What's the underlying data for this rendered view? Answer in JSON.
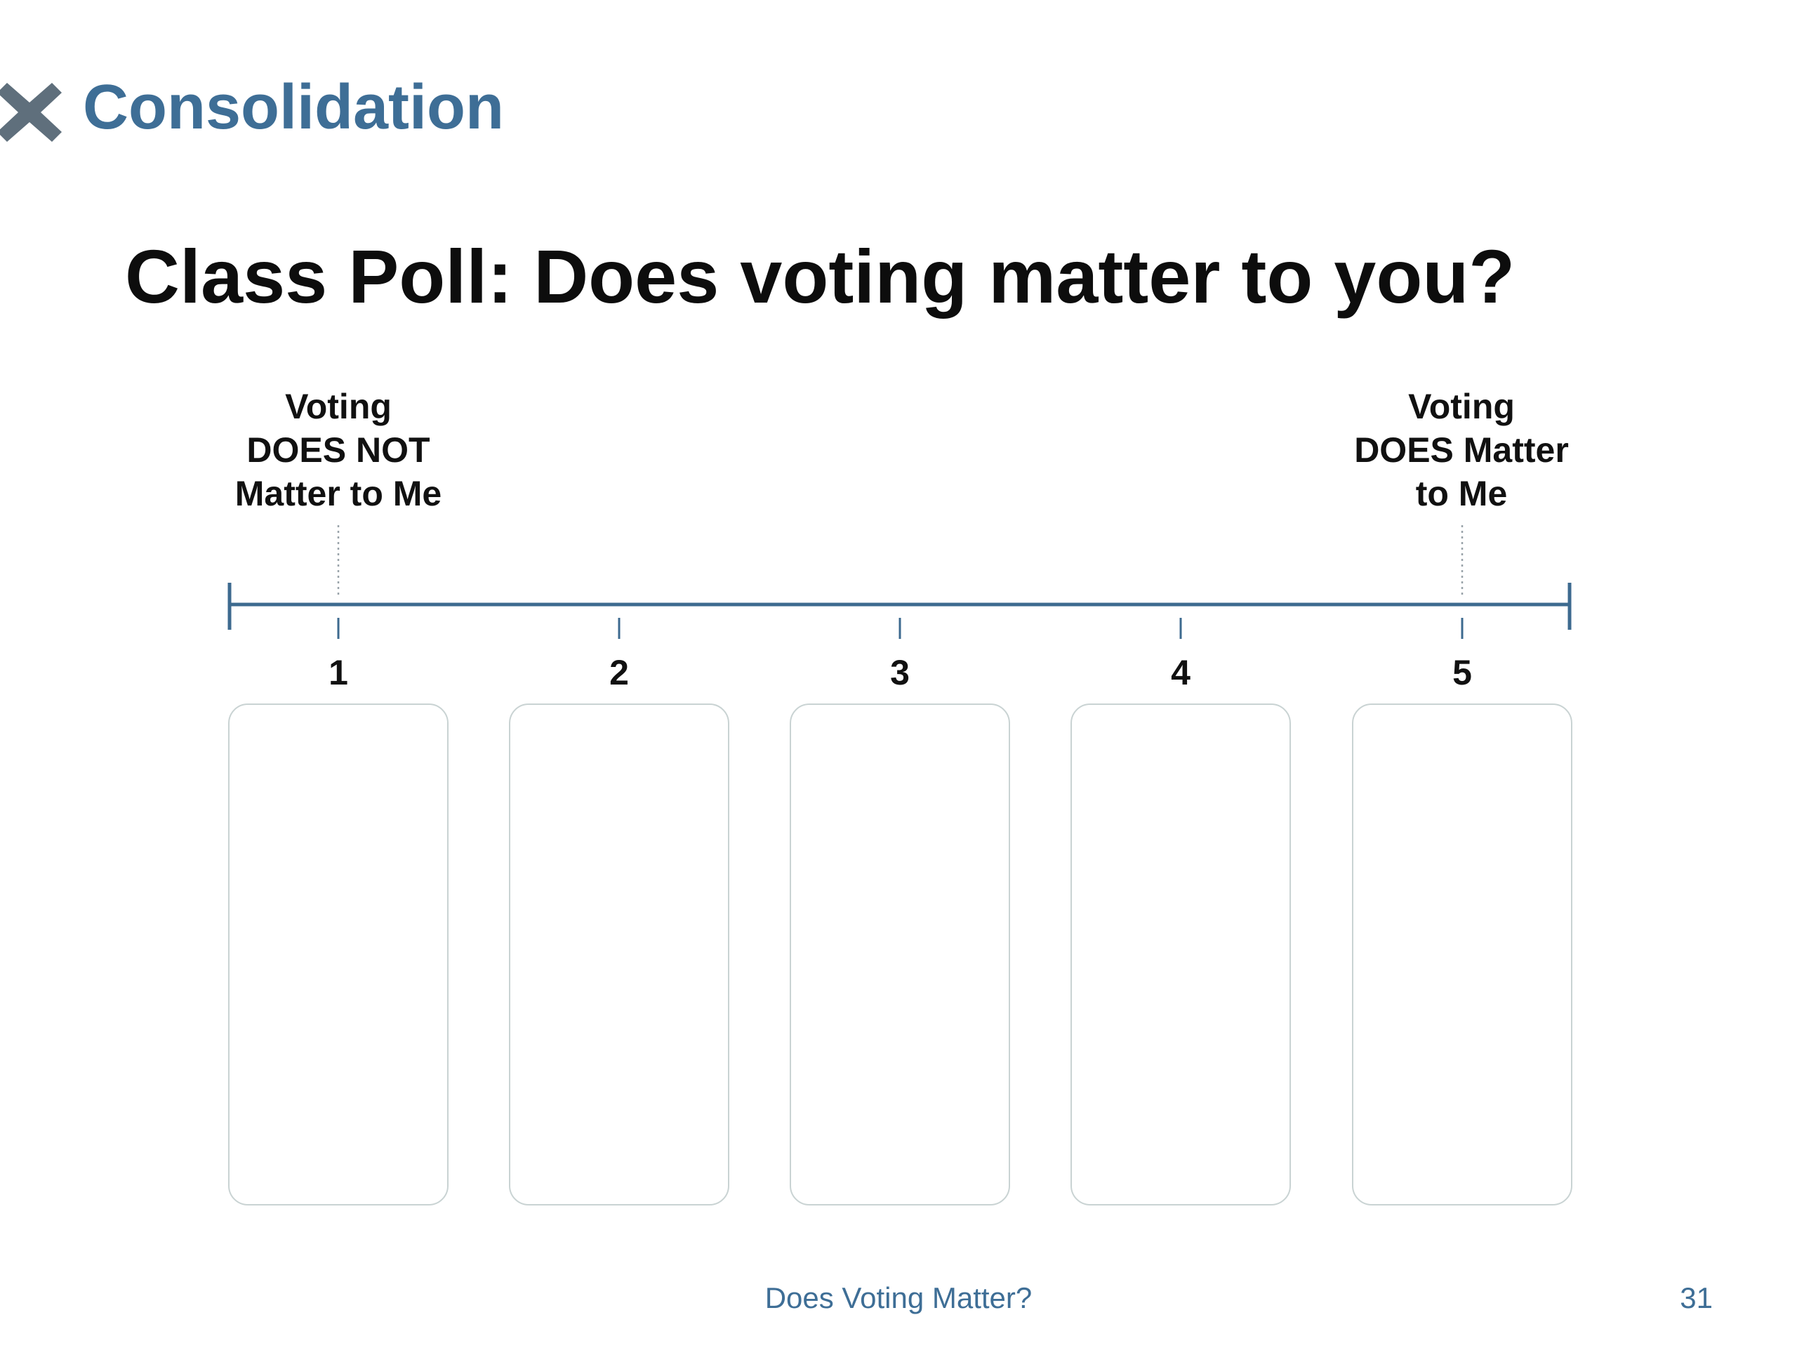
{
  "header": {
    "icon": "x-mark-icon",
    "section_title": "Consolidation"
  },
  "poll": {
    "title": "Class Poll: Does voting matter to you?",
    "left_label": "Voting\nDOES NOT\nMatter to Me",
    "right_label": "Voting\nDOES Matter\nto Me",
    "scale": [
      "1",
      "2",
      "3",
      "4",
      "5"
    ]
  },
  "footer": {
    "title": "Does Voting Matter?",
    "page_number": "31"
  },
  "colors": {
    "accent": "#3e6e96",
    "scale_line": "#3d6a8f",
    "box_border": "#c9d3d3",
    "text": "#111111"
  }
}
